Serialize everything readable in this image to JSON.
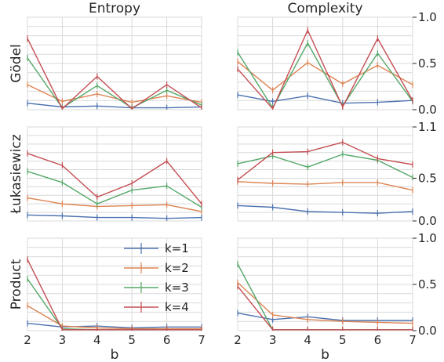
{
  "chart_data": {
    "type": "line",
    "x": [
      2,
      3,
      4,
      5,
      6,
      7
    ],
    "xlabel": "b",
    "columns": [
      "Entropy",
      "Complexity"
    ],
    "rows": [
      "Gödel",
      "Łukasiewicz",
      "Product"
    ],
    "right_axis": [
      {
        "ylim": [
          0.0,
          1.0
        ],
        "ticks": [
          "0.0",
          "0.5",
          "1.0"
        ]
      },
      {
        "ylim": [
          0.0,
          1.1
        ],
        "ticks": [
          "0.0",
          "0.5",
          "1.1"
        ]
      },
      {
        "ylim": [
          0.0,
          1.0
        ],
        "ticks": [
          "0.0",
          "0.5",
          "1.0"
        ]
      }
    ],
    "legend": {
      "placement": "inside bottom-left panel, upper-right",
      "entries": [
        "k=1",
        "k=2",
        "k=3",
        "k=4"
      ]
    },
    "colors": [
      "#4c72b0",
      "#dd8452",
      "#55a868",
      "#c44e52"
    ],
    "grid": true,
    "panels": [
      {
        "row": 0,
        "col": 0,
        "series": [
          {
            "name": "k=1",
            "values": [
              0.07,
              0.03,
              0.04,
              0.02,
              0.02,
              0.03
            ]
          },
          {
            "name": "k=2",
            "values": [
              0.27,
              0.09,
              0.17,
              0.08,
              0.15,
              0.08
            ]
          },
          {
            "name": "k=3",
            "values": [
              0.56,
              0.02,
              0.26,
              0.02,
              0.21,
              0.05
            ]
          },
          {
            "name": "k=4",
            "values": [
              0.77,
              0.01,
              0.36,
              0.01,
              0.27,
              0.02
            ]
          }
        ]
      },
      {
        "row": 0,
        "col": 1,
        "series": [
          {
            "name": "k=1",
            "values": [
              0.16,
              0.09,
              0.15,
              0.07,
              0.08,
              0.1
            ]
          },
          {
            "name": "k=2",
            "values": [
              0.52,
              0.21,
              0.51,
              0.28,
              0.48,
              0.27
            ]
          },
          {
            "name": "k=3",
            "values": [
              0.62,
              0.02,
              0.72,
              0.04,
              0.61,
              0.09
            ]
          },
          {
            "name": "k=4",
            "values": [
              0.44,
              0.01,
              0.86,
              0.03,
              0.77,
              0.1
            ]
          }
        ]
      },
      {
        "row": 1,
        "col": 0,
        "series": [
          {
            "name": "k=1",
            "values": [
              0.07,
              0.06,
              0.04,
              0.04,
              0.03,
              0.04
            ]
          },
          {
            "name": "k=2",
            "values": [
              0.27,
              0.2,
              0.17,
              0.18,
              0.19,
              0.11
            ]
          },
          {
            "name": "k=3",
            "values": [
              0.58,
              0.45,
              0.2,
              0.36,
              0.41,
              0.16
            ]
          },
          {
            "name": "k=4",
            "values": [
              0.79,
              0.65,
              0.28,
              0.44,
              0.7,
              0.2
            ]
          }
        ]
      },
      {
        "row": 1,
        "col": 1,
        "series": [
          {
            "name": "k=1",
            "values": [
              0.18,
              0.16,
              0.11,
              0.1,
              0.09,
              0.11
            ]
          },
          {
            "name": "k=2",
            "values": [
              0.46,
              0.44,
              0.43,
              0.45,
              0.45,
              0.36
            ]
          },
          {
            "name": "k=3",
            "values": [
              0.67,
              0.76,
              0.63,
              0.78,
              0.71,
              0.51
            ]
          },
          {
            "name": "k=4",
            "values": [
              0.48,
              0.8,
              0.81,
              0.92,
              0.73,
              0.66
            ]
          }
        ]
      },
      {
        "row": 2,
        "col": 0,
        "series": [
          {
            "name": "k=1",
            "values": [
              0.08,
              0.04,
              0.05,
              0.03,
              0.04,
              0.04
            ]
          },
          {
            "name": "k=2",
            "values": [
              0.27,
              0.05,
              0.03,
              0.02,
              0.02,
              0.02
            ]
          },
          {
            "name": "k=3",
            "values": [
              0.56,
              0.02,
              0.01,
              0.01,
              0.01,
              0.01
            ]
          },
          {
            "name": "k=4",
            "values": [
              0.77,
              0.01,
              0.01,
              0.01,
              0.01,
              0.01
            ]
          }
        ]
      },
      {
        "row": 2,
        "col": 1,
        "series": [
          {
            "name": "k=1",
            "values": [
              0.19,
              0.12,
              0.15,
              0.11,
              0.11,
              0.11
            ]
          },
          {
            "name": "k=2",
            "values": [
              0.52,
              0.17,
              0.12,
              0.1,
              0.09,
              0.08
            ]
          },
          {
            "name": "k=3",
            "values": [
              0.72,
              0.01,
              0.01,
              0.01,
              0.01,
              0.01
            ]
          },
          {
            "name": "k=4",
            "values": [
              0.48,
              0.01,
              0.01,
              0.01,
              0.01,
              0.01
            ]
          }
        ]
      }
    ]
  }
}
